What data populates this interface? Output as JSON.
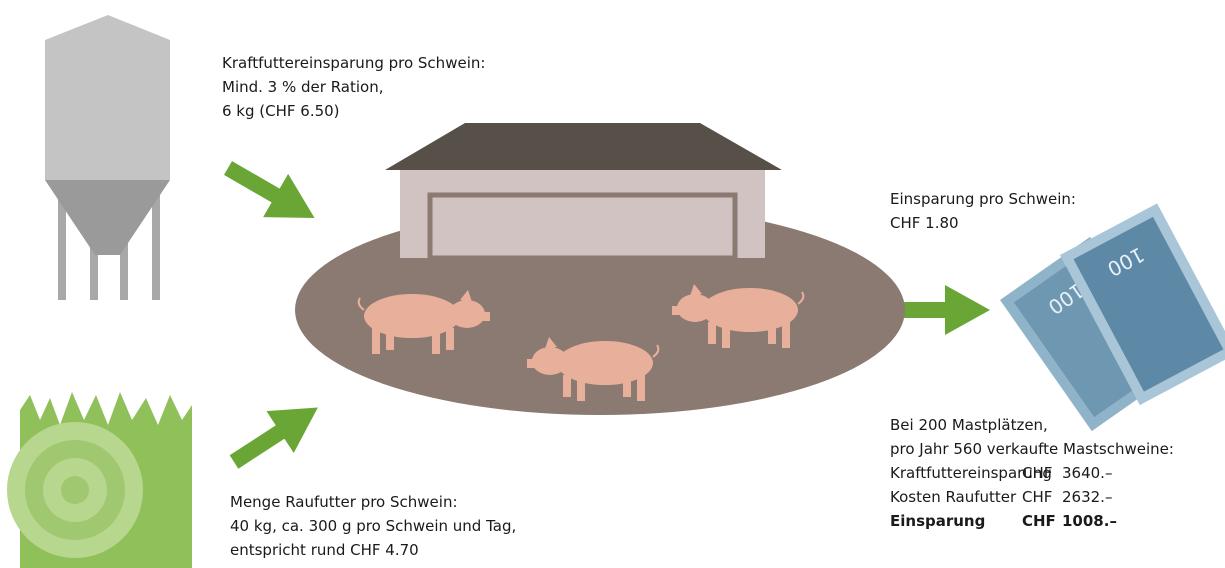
{
  "top_note": {
    "lines": [
      "Kraftfuttereinsparung pro Schwein:",
      "Mind. 3 % der Ration,",
      "6 kg (CHF 6.50)"
    ]
  },
  "saving_note": {
    "lines": [
      "Einsparung pro Schwein:",
      "CHF 1.80"
    ]
  },
  "bottom_note": {
    "lines": [
      "Menge Raufutter pro Schwein:",
      "40 kg, ca. 300 g pro Schwein und Tag,",
      "entspricht rund CHF 4.70"
    ]
  },
  "summary": {
    "lines": [
      "Bei 200 Mastplätzen,",
      "pro Jahr 560 verkaufte Mastschweine:"
    ],
    "table": {
      "rows": [
        [
          "Kraftfuttereinsparung",
          "CHF",
          "3640.–"
        ],
        [
          "Kosten Raufutter",
          "CHF",
          "2632.–"
        ],
        [
          "Einsparung",
          "CHF",
          "1008.–"
        ]
      ]
    }
  },
  "banknotes": {
    "labels": [
      "100",
      "100"
    ]
  }
}
